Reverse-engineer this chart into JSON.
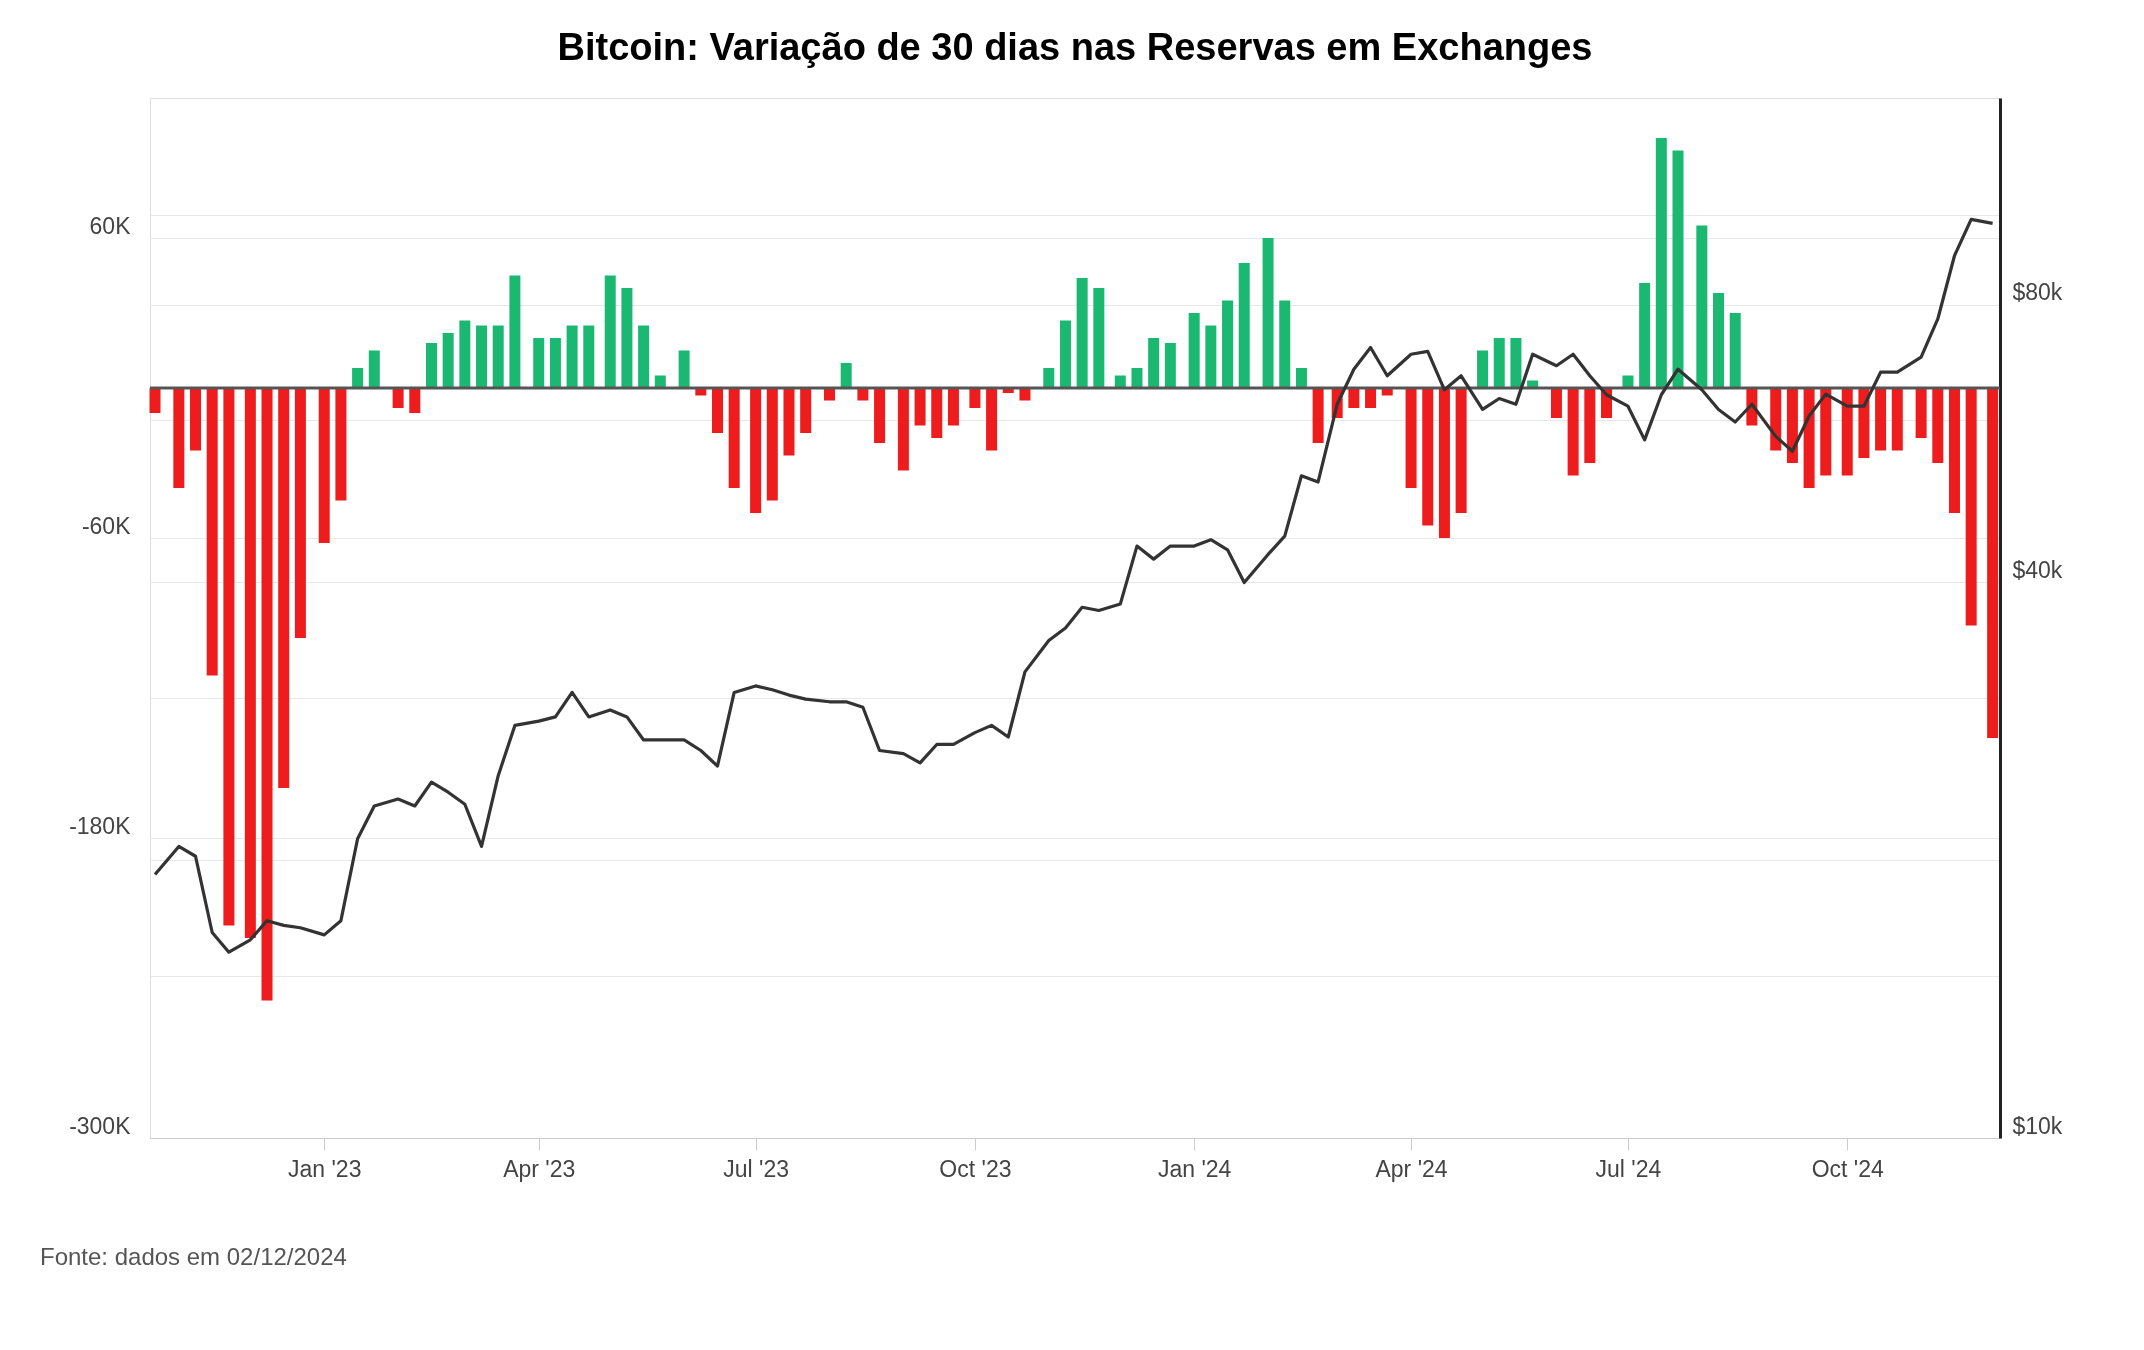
{
  "chart_data": {
    "type": "bar",
    "title": "Bitcoin: Variação de 30 dias nas Reservas em Exchanges",
    "annotations": [
      "Fonte: dados em 02/12/2024"
    ],
    "x": [
      "2022-10-22",
      "2022-11-01",
      "2022-11-08",
      "2022-11-15",
      "2022-11-22",
      "2022-12-01",
      "2022-12-08",
      "2022-12-15",
      "2022-12-22",
      "2023-01-01",
      "2023-01-08",
      "2023-01-15",
      "2023-01-22",
      "2023-02-01",
      "2023-02-08",
      "2023-02-15",
      "2023-02-22",
      "2023-03-01",
      "2023-03-08",
      "2023-03-15",
      "2023-03-22",
      "2023-04-01",
      "2023-04-08",
      "2023-04-15",
      "2023-04-22",
      "2023-05-01",
      "2023-05-08",
      "2023-05-15",
      "2023-05-22",
      "2023-06-01",
      "2023-06-08",
      "2023-06-15",
      "2023-06-22",
      "2023-07-01",
      "2023-07-08",
      "2023-07-15",
      "2023-07-22",
      "2023-08-01",
      "2023-08-08",
      "2023-08-15",
      "2023-08-22",
      "2023-09-01",
      "2023-09-08",
      "2023-09-15",
      "2023-09-22",
      "2023-10-01",
      "2023-10-08",
      "2023-10-15",
      "2023-10-22",
      "2023-11-01",
      "2023-11-08",
      "2023-11-15",
      "2023-11-22",
      "2023-12-01",
      "2023-12-08",
      "2023-12-15",
      "2023-12-22",
      "2024-01-01",
      "2024-01-08",
      "2024-01-15",
      "2024-01-22",
      "2024-02-01",
      "2024-02-08",
      "2024-02-15",
      "2024-02-22",
      "2024-03-01",
      "2024-03-08",
      "2024-03-15",
      "2024-03-22",
      "2024-04-01",
      "2024-04-08",
      "2024-04-15",
      "2024-04-22",
      "2024-05-01",
      "2024-05-08",
      "2024-05-15",
      "2024-05-22",
      "2024-06-01",
      "2024-06-08",
      "2024-06-15",
      "2024-06-22",
      "2024-07-01",
      "2024-07-08",
      "2024-07-15",
      "2024-07-22",
      "2024-08-01",
      "2024-08-08",
      "2024-08-15",
      "2024-08-22",
      "2024-09-01",
      "2024-09-08",
      "2024-09-15",
      "2024-09-22",
      "2024-10-01",
      "2024-10-08",
      "2024-10-15",
      "2024-10-22",
      "2024-11-01",
      "2024-11-08",
      "2024-11-15",
      "2024-11-22",
      "2024-12-01"
    ],
    "series": [
      {
        "colors": [
          "#ee1c1c",
          "#ee1c1c",
          "#ee1c1c",
          "#ee1c1c",
          "#ee1c1c",
          "#ee1c1c",
          "#ee1c1c",
          "#ee1c1c",
          "#ee1c1c",
          "#ee1c1c",
          "#ee1c1c",
          "#1bb872",
          "#1bb872",
          "#ee1c1c",
          "#ee1c1c",
          "#1bb872",
          "#1bb872",
          "#1bb872",
          "#1bb872",
          "#1bb872",
          "#1bb872",
          "#1bb872",
          "#1bb872",
          "#1bb872",
          "#1bb872",
          "#1bb872",
          "#1bb872",
          "#1bb872",
          "#1bb872",
          "#1bb872",
          "#ee1c1c",
          "#ee1c1c",
          "#ee1c1c",
          "#ee1c1c",
          "#ee1c1c",
          "#ee1c1c",
          "#ee1c1c",
          "#ee1c1c",
          "#1bb872",
          "#ee1c1c",
          "#ee1c1c",
          "#ee1c1c",
          "#ee1c1c",
          "#ee1c1c",
          "#ee1c1c",
          "#ee1c1c",
          "#ee1c1c",
          "#ee1c1c",
          "#ee1c1c",
          "#1bb872",
          "#1bb872",
          "#1bb872",
          "#1bb872",
          "#1bb872",
          "#1bb872",
          "#1bb872",
          "#1bb872",
          "#1bb872",
          "#1bb872",
          "#1bb872",
          "#1bb872",
          "#1bb872",
          "#1bb872",
          "#1bb872",
          "#ee1c1c",
          "#ee1c1c",
          "#ee1c1c",
          "#ee1c1c",
          "#ee1c1c",
          "#ee1c1c",
          "#ee1c1c",
          "#ee1c1c",
          "#ee1c1c",
          "#1bb872",
          "#1bb872",
          "#1bb872",
          "#1bb872",
          "#ee1c1c",
          "#ee1c1c",
          "#ee1c1c",
          "#ee1c1c",
          "#1bb872",
          "#1bb872",
          "#1bb872",
          "#1bb872",
          "#1bb872",
          "#1bb872",
          "#1bb872",
          "#ee1c1c",
          "#ee1c1c",
          "#ee1c1c",
          "#ee1c1c",
          "#ee1c1c",
          "#ee1c1c",
          "#ee1c1c",
          "#ee1c1c",
          "#ee1c1c",
          "#ee1c1c",
          "#ee1c1c",
          "#ee1c1c",
          "#ee1c1c",
          "#ee1c1c"
        ],
        "values": [
          -10000,
          -40000,
          -25000,
          -115000,
          -215000,
          -220000,
          -245000,
          -160000,
          -100000,
          -62000,
          -45000,
          8000,
          15000,
          -8000,
          -10000,
          18000,
          22000,
          27000,
          25000,
          25000,
          45000,
          20000,
          20000,
          25000,
          25000,
          45000,
          40000,
          25000,
          5000,
          15000,
          -3000,
          -18000,
          -40000,
          -50000,
          -45000,
          -27000,
          -18000,
          -5000,
          10000,
          -5000,
          -22000,
          -33000,
          -15000,
          -20000,
          -15000,
          -8000,
          -25000,
          -2000,
          -5000,
          8000,
          27000,
          44000,
          40000,
          5000,
          8000,
          20000,
          18000,
          30000,
          25000,
          35000,
          50000,
          60000,
          35000,
          8000,
          -22000,
          -12000,
          -8000,
          -8000,
          -3000,
          -40000,
          -55000,
          -60000,
          -50000,
          15000,
          20000,
          20000,
          3000,
          -12000,
          -35000,
          -30000,
          -12000,
          5000,
          42000,
          100000,
          95000,
          65000,
          38000,
          30000,
          -15000,
          -25000,
          -30000,
          -40000,
          -35000,
          -35000,
          -28000,
          -25000,
          -25000,
          -20000,
          -30000,
          -50000,
          -95000,
          -140000
        ]
      },
      {
        "type": "line",
        "axis": "y2",
        "color": "#333333",
        "values": [
          19300,
          20700,
          20200,
          16700,
          15900,
          16400,
          17200,
          17000,
          16900,
          16600,
          17200,
          21100,
          22900,
          23300,
          22900,
          24300,
          23700,
          23000,
          20700,
          24700,
          28000,
          28300,
          28600,
          30400,
          28600,
          29100,
          28600,
          27000,
          27000,
          27000,
          26300,
          25300,
          30400,
          30900,
          30600,
          30200,
          29900,
          29700,
          29700,
          29300,
          26300,
          26100,
          25500,
          26700,
          26700,
          27500,
          28000,
          27200,
          32000,
          34600,
          35700,
          37600,
          37300,
          37900,
          43800,
          42400,
          43800,
          43800,
          44500,
          43400,
          40000,
          42900,
          44900,
          52200,
          51400,
          62400,
          68100,
          71900,
          67000,
          70700,
          71200,
          64700,
          67000,
          61600,
          63300,
          62400,
          70700,
          68700,
          70700,
          67000,
          63900,
          62100,
          57100,
          63900,
          68100,
          64700,
          61600,
          59700,
          62400,
          57600,
          55500,
          60600,
          64000,
          62100,
          62100,
          67600,
          67600,
          70200,
          77200,
          90400,
          99000,
          98000
        ]
      }
    ],
    "xlim": [
      "2022-10-22",
      "2024-12-02"
    ],
    "xticks": [
      {
        "value": "2023-01-01",
        "label": "Jan '23"
      },
      {
        "value": "2023-04-01",
        "label": "Apr '23"
      },
      {
        "value": "2023-07-01",
        "label": "Jul '23"
      },
      {
        "value": "2023-10-01",
        "label": "Oct '23"
      },
      {
        "value": "2024-01-01",
        "label": "Jan '24"
      },
      {
        "value": "2024-04-01",
        "label": "Apr '24"
      },
      {
        "value": "2024-07-01",
        "label": "Jul '24"
      },
      {
        "value": "2024-10-01",
        "label": "Oct '24"
      }
    ],
    "ylim": [
      -300000,
      116000
    ],
    "yticks": [
      {
        "value": 60000,
        "label": "60K"
      },
      {
        "value": -60000,
        "label": "-60K"
      },
      {
        "value": -180000,
        "label": "-180K"
      },
      {
        "value": -300000,
        "label": "-300K"
      }
    ],
    "y2lim": [
      10000,
      134000
    ],
    "y2ticks": [
      {
        "value": 10000,
        "label": "$10k"
      },
      {
        "value": 15000,
        "label": null
      },
      {
        "value": 20000,
        "label": null
      },
      {
        "value": 30000,
        "label": null
      },
      {
        "value": 40000,
        "label": "$40k"
      },
      {
        "value": 60000,
        "label": null
      },
      {
        "value": 80000,
        "label": "$80k"
      },
      {
        "value": 100000,
        "label": null
      }
    ],
    "log": "y2",
    "ref_lines": [
      {
        "axis": "y",
        "value": 0,
        "color": "#555555"
      }
    ],
    "grid": "y"
  }
}
